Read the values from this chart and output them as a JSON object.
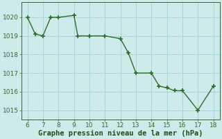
{
  "x_data": [
    6,
    6.5,
    7,
    7.5,
    8,
    9,
    9.25,
    10,
    11,
    12,
    12.5,
    13,
    14,
    14.5,
    15,
    15.5,
    16,
    17,
    18
  ],
  "y_data": [
    1020.0,
    1019.1,
    1019.0,
    1020.0,
    1020.0,
    1020.1,
    1019.0,
    1019.0,
    1019.0,
    1018.85,
    1018.1,
    1017.0,
    1017.0,
    1016.3,
    1016.2,
    1016.05,
    1016.05,
    1015.0,
    1016.3
  ],
  "ylim": [
    1014.5,
    1020.8
  ],
  "xlim": [
    5.6,
    18.4
  ],
  "yticks": [
    1015,
    1016,
    1017,
    1018,
    1019,
    1020
  ],
  "xticks": [
    6,
    7,
    8,
    9,
    10,
    11,
    12,
    13,
    14,
    15,
    16,
    17,
    18
  ],
  "line_color": "#2d6a2d",
  "bg_color": "#ceeaea",
  "grid_color": "#9fcfcf",
  "xlabel": "Graphe pression niveau de la mer (hPa)",
  "xlabel_color": "#1a4f1a",
  "xlabel_fontsize": 7.5,
  "tick_fontsize": 6.5,
  "linewidth": 1.0,
  "markersize": 4.5,
  "marker": "+"
}
